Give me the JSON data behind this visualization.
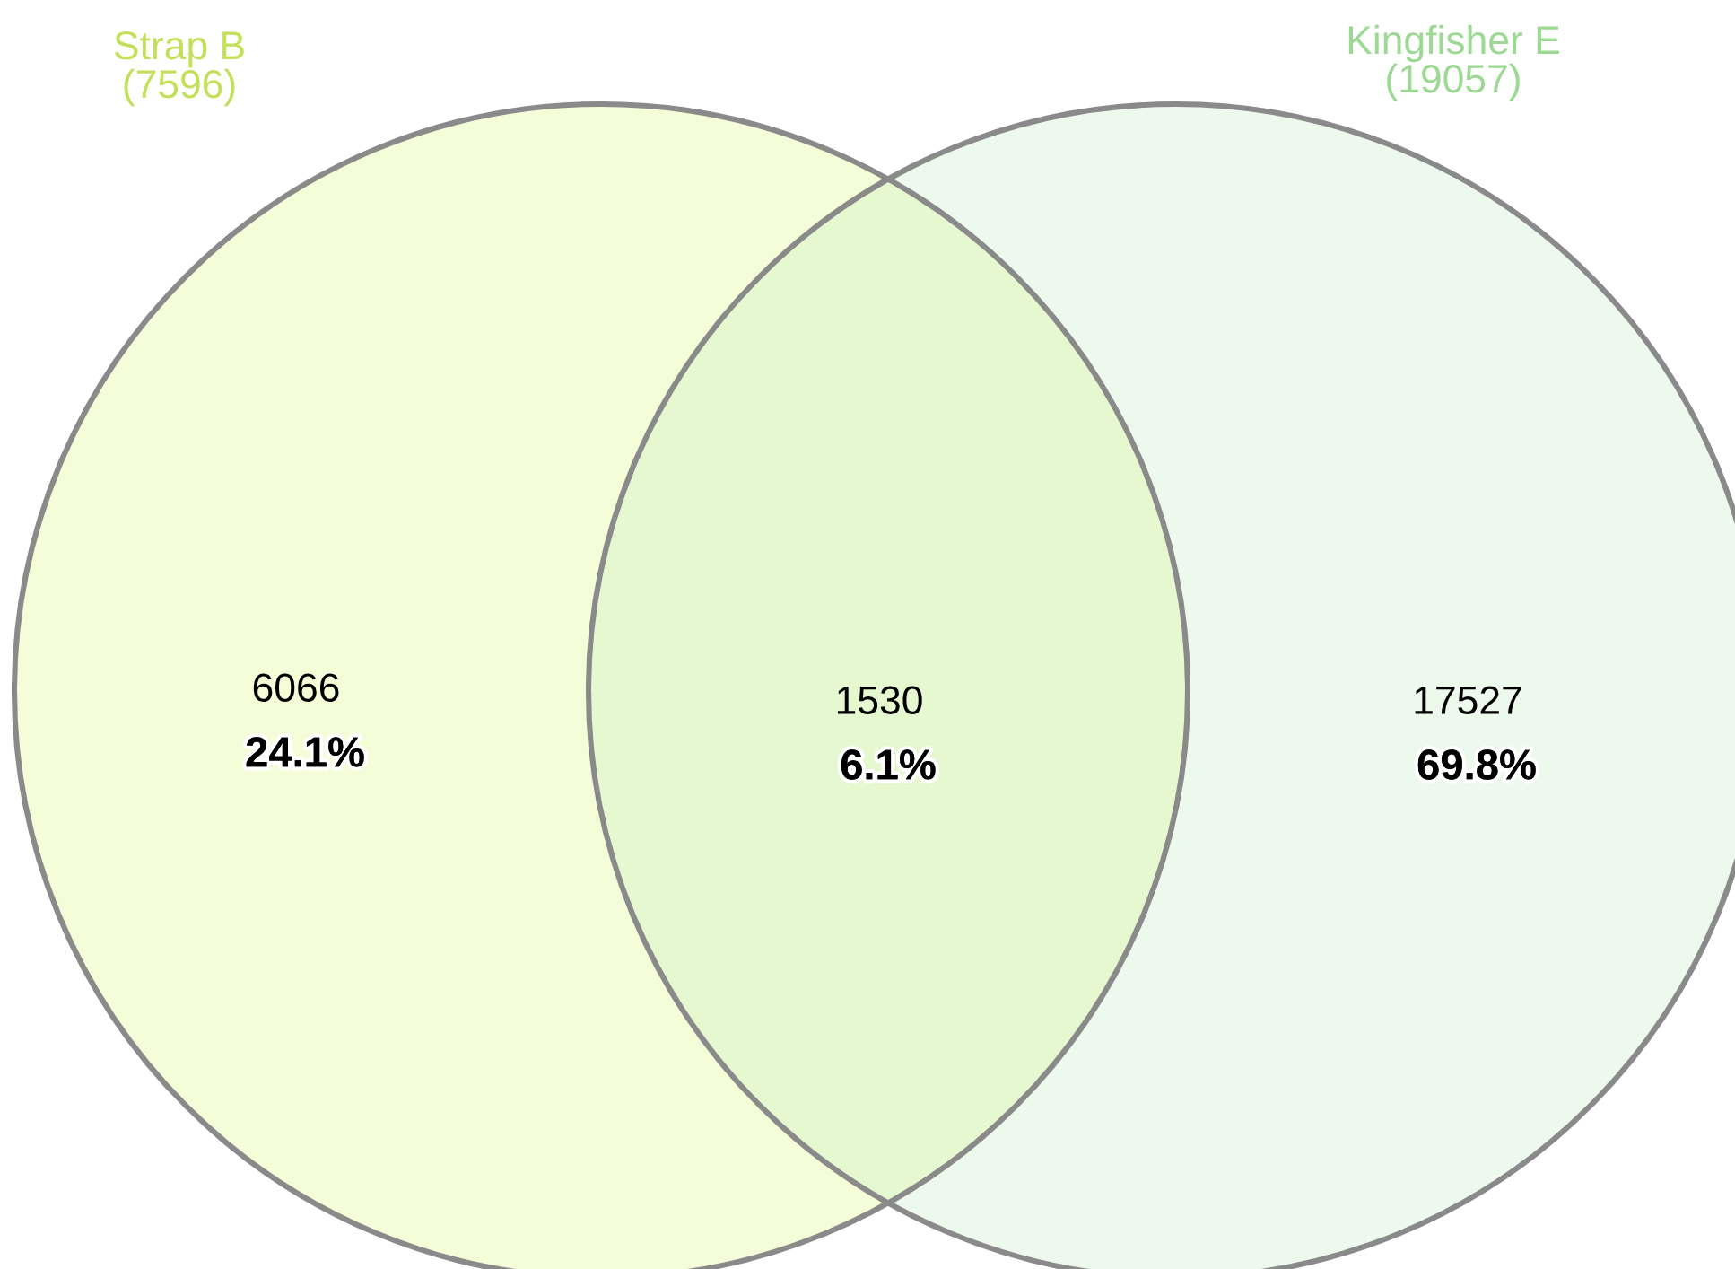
{
  "chart_data": {
    "type": "other",
    "categories": [
      null,
      null,
      null
    ],
    "values": [
      6066,
      1530,
      17527
    ],
    "data_labels": true,
    "colors": [
      "#f5fdd8",
      "#e6f8cf",
      "#edf9ec"
    ],
    "annotations": [
      "Strap B\n(7596)",
      "Kingfisher E\n(19057)",
      "24.1%",
      "6.1%",
      "69.8%"
    ]
  }
}
